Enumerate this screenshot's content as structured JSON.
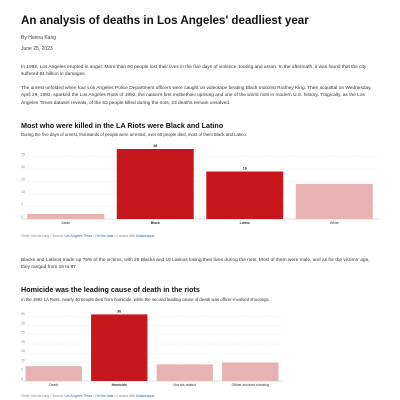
{
  "article": {
    "title": "An analysis of deaths in Los Angeles' deadliest year",
    "byline": "By Hanna Kang",
    "date": "June 25, 2023",
    "paragraphs": [
      "In 1992, Los Angeles erupted in anger. More than 60 people lost their lives in the five days of violence, looting and arson. In the aftermath, it was found that the city suffered $1 billion in damages.",
      "The unrest unfolded when four Los Angeles Police Department officers were caught on videotape beating Black motorist Rodney King. Their acquittal on Wednesday, April 29, 1992, sparked the Los Angeles Riots of 1992, the nation's first multiethnic uprising and one of the worst riots in modern U.S. history. Tragically, as the Los Angeles Times dataset reveals, of the 63 people killed during the riots, 23 deaths remain unsolved.",
      "Blacks and Latinos made up 75% of the victims, with 28 Blacks and 19 Latinos losing their lives during the riots. Most of them were male, and as for the victims' age, they ranged from 15 to 87."
    ]
  },
  "charts": [
    {
      "heading": "Most who were killed in the LA Riots were Black and Latino",
      "subtitle": "During the five days of unrest, thousands of people were arrested, over 60 people died, most of them Black and Latino.",
      "source": {
        "prefix": "Chart: Hanna Kang • Source: ",
        "source_link": "Los Angeles Times",
        "sep1": " • ",
        "data_link": "Get the data",
        "sep2": " • Created with ",
        "tool_link": "Datawrapper"
      }
    },
    {
      "heading": "Homicide was the leading cause of death in the riots",
      "subtitle": "In the 1992 LA Riots, nearly 40 people died from homicide, while the second leading cause of death was officer-involved shootings.",
      "source": {
        "prefix": "Chart: Hanna Kang • Source: ",
        "source_link": "Los Angeles Times",
        "sep1": " • ",
        "data_link": "Get the data",
        "sep2": " • Created with ",
        "tool_link": "Datawrapper"
      }
    }
  ],
  "chart_data": [
    {
      "type": "bar",
      "categories": [
        "Asian",
        "Black",
        "Latino",
        "White"
      ],
      "values": [
        2,
        28,
        19,
        14
      ],
      "data_labels": [
        "",
        "28",
        "19",
        ""
      ],
      "highlight": [
        false,
        true,
        true,
        false
      ],
      "yticks": [
        0,
        5,
        10,
        15,
        20,
        25
      ],
      "ylim": [
        0,
        30
      ],
      "grid": true,
      "colors": {
        "highlight": "#c8161d",
        "base": "#e8b2b2"
      }
    },
    {
      "type": "bar",
      "categories": [
        "Death",
        "Homicide",
        "Not riot-related",
        "Officer-involved shooting"
      ],
      "values": [
        8,
        36,
        9,
        10
      ],
      "data_labels": [
        "",
        "36",
        "",
        ""
      ],
      "highlight": [
        false,
        true,
        false,
        false
      ],
      "yticks": [
        0,
        5,
        10,
        15,
        20,
        25,
        30,
        35
      ],
      "ylim": [
        0,
        40
      ],
      "grid": true,
      "colors": {
        "highlight": "#c8161d",
        "base": "#e8b2b2"
      }
    }
  ]
}
